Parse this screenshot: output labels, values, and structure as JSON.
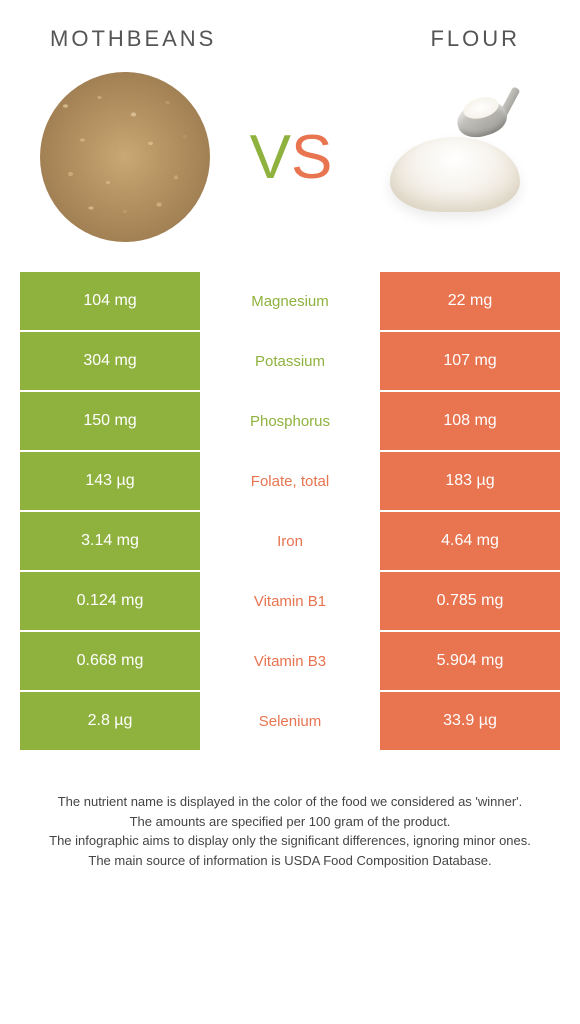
{
  "header": {
    "left": "MOTHBEANS",
    "right": "FLOUR"
  },
  "vs": {
    "v": "V",
    "s": "S"
  },
  "colors": {
    "green": "#8fb23e",
    "orange": "#e87450",
    "textGray": "#555555"
  },
  "rows": [
    {
      "left": "104 mg",
      "mid": "Magnesium",
      "winner": "green",
      "right": "22 mg"
    },
    {
      "left": "304 mg",
      "mid": "Potassium",
      "winner": "green",
      "right": "107 mg"
    },
    {
      "left": "150 mg",
      "mid": "Phosphorus",
      "winner": "green",
      "right": "108 mg"
    },
    {
      "left": "143 µg",
      "mid": "Folate, total",
      "winner": "orange",
      "right": "183 µg"
    },
    {
      "left": "3.14 mg",
      "mid": "Iron",
      "winner": "orange",
      "right": "4.64 mg"
    },
    {
      "left": "0.124 mg",
      "mid": "Vitamin B1",
      "winner": "orange",
      "right": "0.785 mg"
    },
    {
      "left": "0.668 mg",
      "mid": "Vitamin B3",
      "winner": "orange",
      "right": "5.904 mg"
    },
    {
      "left": "2.8 µg",
      "mid": "Selenium",
      "winner": "orange",
      "right": "33.9 µg"
    }
  ],
  "footer": {
    "l1": "The nutrient name is displayed in the color of the food we considered as 'winner'.",
    "l2": "The amounts are specified per 100 gram of the product.",
    "l3": "The infographic aims to display only the significant differences, ignoring minor ones.",
    "l4": "The main source of information is USDA Food Composition Database."
  }
}
